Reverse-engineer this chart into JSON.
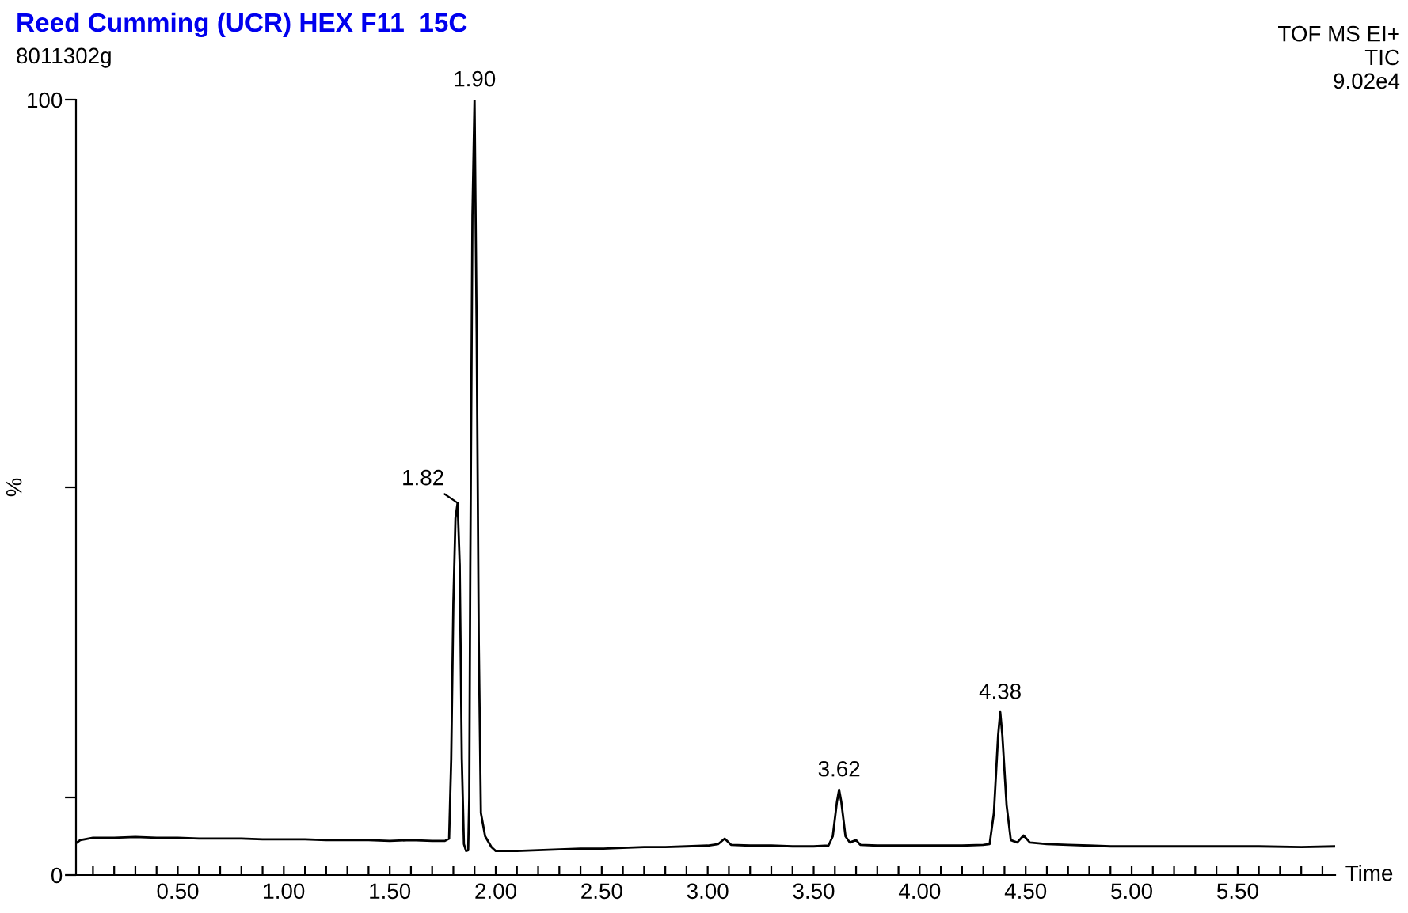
{
  "chart_data": {
    "type": "line",
    "title": "Reed Cumming (UCR) HEX F11  15C",
    "xlabel": "Time",
    "ylabel": "%",
    "annotations": [
      "8011302g",
      "TOF MS EI+\nTIC\n9.02e4",
      {
        "text": "1.82",
        "x": 1.82,
        "y": 48.0
      },
      {
        "text": "1.90",
        "x": 1.9,
        "y": 100
      },
      {
        "text": "3.62",
        "x": 3.62,
        "y": 11.0
      },
      {
        "text": "4.38",
        "x": 4.38,
        "y": 21.0
      }
    ],
    "series": [
      {
        "color": "#000000",
        "x": [
          0.02,
          0.04,
          0.1,
          0.2,
          0.3,
          0.4,
          0.5,
          0.6,
          0.7,
          0.8,
          0.9,
          1.0,
          1.1,
          1.2,
          1.3,
          1.4,
          1.5,
          1.6,
          1.7,
          1.76,
          1.78,
          1.79,
          1.8,
          1.81,
          1.82,
          1.83,
          1.84,
          1.85,
          1.86,
          1.87,
          1.875,
          1.88,
          1.89,
          1.9,
          1.91,
          1.92,
          1.93,
          1.95,
          1.98,
          2.0,
          2.1,
          2.2,
          2.3,
          2.4,
          2.5,
          2.6,
          2.7,
          2.8,
          2.9,
          3.0,
          3.05,
          3.08,
          3.11,
          3.2,
          3.3,
          3.4,
          3.5,
          3.57,
          3.59,
          3.61,
          3.62,
          3.63,
          3.65,
          3.67,
          3.7,
          3.72,
          3.8,
          3.9,
          4.0,
          4.1,
          4.2,
          4.3,
          4.33,
          4.35,
          4.37,
          4.38,
          4.39,
          4.41,
          4.43,
          4.46,
          4.49,
          4.52,
          4.6,
          4.7,
          4.8,
          4.9,
          5.0,
          5.2,
          5.4,
          5.6,
          5.8,
          5.96
        ],
        "values": [
          4.1,
          4.5,
          4.8,
          4.8,
          4.9,
          4.8,
          4.8,
          4.7,
          4.7,
          4.7,
          4.6,
          4.6,
          4.6,
          4.5,
          4.5,
          4.5,
          4.4,
          4.5,
          4.4,
          4.4,
          4.7,
          15,
          35,
          46,
          48,
          40,
          15,
          4,
          3.1,
          3.2,
          10,
          40,
          85,
          100,
          70,
          30,
          8,
          5,
          3.6,
          3.1,
          3.1,
          3.2,
          3.3,
          3.4,
          3.4,
          3.5,
          3.6,
          3.6,
          3.7,
          3.8,
          4.0,
          4.7,
          3.9,
          3.8,
          3.8,
          3.7,
          3.7,
          3.8,
          5,
          9.5,
          11.0,
          9.5,
          5,
          4.2,
          4.5,
          3.9,
          3.8,
          3.8,
          3.8,
          3.8,
          3.8,
          3.9,
          4.0,
          8,
          18,
          21.0,
          18,
          9,
          4.5,
          4.2,
          5.1,
          4.2,
          4.0,
          3.9,
          3.8,
          3.7,
          3.7,
          3.7,
          3.7,
          3.7,
          3.6,
          3.7
        ]
      }
    ],
    "xlim": [
      0.02,
      5.96
    ],
    "ylim": [
      0,
      100
    ],
    "xticks": [
      {
        "value": 0.1,
        "label": null
      },
      {
        "value": 0.2,
        "label": null
      },
      {
        "value": 0.3,
        "label": null
      },
      {
        "value": 0.4,
        "label": null
      },
      {
        "value": 0.5,
        "label": "0.50"
      },
      {
        "value": 0.6,
        "label": null
      },
      {
        "value": 0.7,
        "label": null
      },
      {
        "value": 0.8,
        "label": null
      },
      {
        "value": 0.9,
        "label": null
      },
      {
        "value": 1.0,
        "label": "1.00"
      },
      {
        "value": 1.1,
        "label": null
      },
      {
        "value": 1.2,
        "label": null
      },
      {
        "value": 1.3,
        "label": null
      },
      {
        "value": 1.4,
        "label": null
      },
      {
        "value": 1.5,
        "label": "1.50"
      },
      {
        "value": 1.6,
        "label": null
      },
      {
        "value": 1.7,
        "label": null
      },
      {
        "value": 1.8,
        "label": null
      },
      {
        "value": 1.9,
        "label": null
      },
      {
        "value": 2.0,
        "label": "2.00"
      },
      {
        "value": 2.1,
        "label": null
      },
      {
        "value": 2.2,
        "label": null
      },
      {
        "value": 2.3,
        "label": null
      },
      {
        "value": 2.4,
        "label": null
      },
      {
        "value": 2.5,
        "label": "2.50"
      },
      {
        "value": 2.6,
        "label": null
      },
      {
        "value": 2.7,
        "label": null
      },
      {
        "value": 2.8,
        "label": null
      },
      {
        "value": 2.9,
        "label": null
      },
      {
        "value": 3.0,
        "label": "3.00"
      },
      {
        "value": 3.1,
        "label": null
      },
      {
        "value": 3.2,
        "label": null
      },
      {
        "value": 3.3,
        "label": null
      },
      {
        "value": 3.4,
        "label": null
      },
      {
        "value": 3.5,
        "label": "3.50"
      },
      {
        "value": 3.6,
        "label": null
      },
      {
        "value": 3.7,
        "label": null
      },
      {
        "value": 3.8,
        "label": null
      },
      {
        "value": 3.9,
        "label": null
      },
      {
        "value": 4.0,
        "label": "4.00"
      },
      {
        "value": 4.1,
        "label": null
      },
      {
        "value": 4.2,
        "label": null
      },
      {
        "value": 4.3,
        "label": null
      },
      {
        "value": 4.4,
        "label": null
      },
      {
        "value": 4.5,
        "label": "4.50"
      },
      {
        "value": 4.6,
        "label": null
      },
      {
        "value": 4.7,
        "label": null
      },
      {
        "value": 4.8,
        "label": null
      },
      {
        "value": 4.9,
        "label": null
      },
      {
        "value": 5.0,
        "label": "5.00"
      },
      {
        "value": 5.1,
        "label": null
      },
      {
        "value": 5.2,
        "label": null
      },
      {
        "value": 5.3,
        "label": null
      },
      {
        "value": 5.4,
        "label": null
      },
      {
        "value": 5.5,
        "label": "5.50"
      },
      {
        "value": 5.6,
        "label": null
      },
      {
        "value": 5.7,
        "label": null
      },
      {
        "value": 5.8,
        "label": null
      },
      {
        "value": 5.9,
        "label": null
      }
    ],
    "yticks": [
      0,
      {
        "value": 10,
        "label": null
      },
      {
        "value": 50,
        "label": null
      },
      100
    ],
    "grid": false,
    "legend": false,
    "marker": "none",
    "line_style": "solid"
  }
}
